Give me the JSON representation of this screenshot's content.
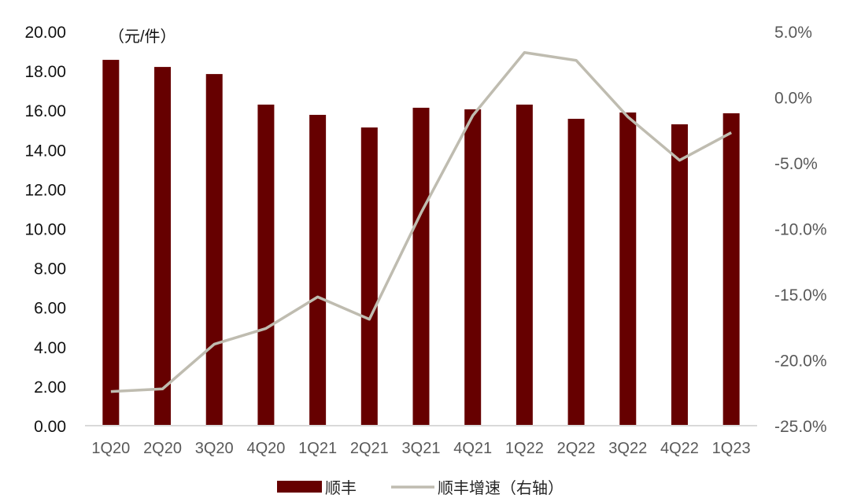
{
  "chart_data": {
    "type": "bar+line",
    "title": "",
    "unit_label": "（元/件）",
    "categories": [
      "1Q20",
      "2Q20",
      "3Q20",
      "4Q20",
      "1Q21",
      "2Q21",
      "3Q21",
      "4Q21",
      "1Q22",
      "2Q22",
      "3Q22",
      "4Q22",
      "1Q23"
    ],
    "series": [
      {
        "name": "顺丰",
        "type": "bar",
        "axis": "left",
        "color": "#660000",
        "values": [
          18.56,
          18.2,
          17.84,
          16.29,
          15.77,
          15.13,
          16.13,
          16.05,
          16.29,
          15.57,
          15.89,
          15.29,
          15.85
        ]
      },
      {
        "name": "顺丰增速（右轴）",
        "type": "line",
        "axis": "right",
        "color": "#bfbcb0",
        "values": [
          -22.4,
          -22.2,
          -18.8,
          -17.6,
          -15.2,
          -16.9,
          -8.8,
          -1.4,
          3.4,
          2.8,
          -1.5,
          -4.8,
          -2.7
        ]
      }
    ],
    "left_axis": {
      "ylim": [
        0,
        20
      ],
      "ticks": [
        "0.00",
        "2.00",
        "4.00",
        "6.00",
        "8.00",
        "10.00",
        "12.00",
        "14.00",
        "16.00",
        "18.00",
        "20.00"
      ]
    },
    "right_axis": {
      "ylim": [
        -25,
        5
      ],
      "ticks": [
        "-25.0%",
        "-20.0%",
        "-15.0%",
        "-10.0%",
        "-5.0%",
        "0.0%",
        "5.0%"
      ]
    },
    "xlabel": "",
    "ylabel": "",
    "grid": false,
    "legend_position": "bottom"
  },
  "legend": {
    "bar_label": "顺丰",
    "line_label": "顺丰增速（右轴）"
  }
}
